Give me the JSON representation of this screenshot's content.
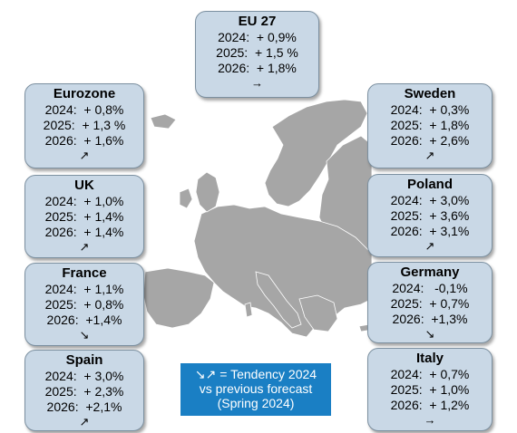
{
  "colors": {
    "map_land": "#a6a6a6",
    "box_fill": "#c9d8e6",
    "box_border": "#7b8f9f",
    "legend_fill": "#1a7fc4"
  },
  "boxes": {
    "eu27": {
      "title": "EU 27",
      "y2024": "2024:  + 0,9%",
      "y2025": "2025:  + 1,5 %",
      "y2026": "2026:  + 1,8%",
      "arrow": "→"
    },
    "eurozone": {
      "title": "Eurozone",
      "y2024": "2024:  + 0,8%",
      "y2025": "2025:  + 1,3 %",
      "y2026": "2026:  + 1,6%",
      "arrow": "↗"
    },
    "uk": {
      "title": "UK",
      "y2024": "2024:  + 1,0%",
      "y2025": "2025:  + 1,4%",
      "y2026": "2026:  + 1,4%",
      "arrow": "↗"
    },
    "france": {
      "title": "France",
      "y2024": "2024:  + 1,1%",
      "y2025": "2025:  + 0,8%",
      "y2026": "2026:  +1,4%",
      "arrow": "↘"
    },
    "spain": {
      "title": "Spain",
      "y2024": "2024:  + 3,0%",
      "y2025": "2025:  + 2,3%",
      "y2026": "2026:  +2,1%",
      "arrow": "↗"
    },
    "sweden": {
      "title": "Sweden",
      "y2024": "2024:  + 0,3%",
      "y2025": "2025:  + 1,8%",
      "y2026": "2026:  + 2,6%",
      "arrow": "↗"
    },
    "poland": {
      "title": "Poland",
      "y2024": "2024:  + 3,0%",
      "y2025": "2025:  + 3,6%",
      "y2026": "2026:  + 3,1%",
      "arrow": "↗"
    },
    "germany": {
      "title": "Germany",
      "y2024": "2024:   -0,1%",
      "y2025": "2025:  + 0,7%",
      "y2026": "2026:  +1,3%",
      "arrow": "↘"
    },
    "italy": {
      "title": "Italy",
      "y2024": "2024:  + 0,7%",
      "y2025": "2025:  + 1,0%",
      "y2026": "2026:  + 1,2%",
      "arrow": "→"
    }
  },
  "legend": {
    "line1": "↘↗ = Tendency 2024",
    "line2": "vs previous forecast",
    "line3": "(Spring 2024)"
  }
}
